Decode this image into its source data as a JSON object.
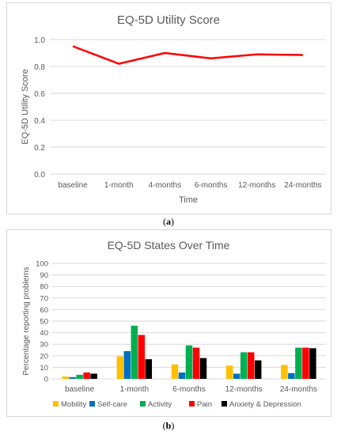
{
  "panels": {
    "a_label": "a",
    "b_label": "b"
  },
  "chart_data": [
    {
      "type": "line",
      "title": "EQ-5D Utility Score",
      "xlabel": "Time",
      "ylabel": "EQ-5D Utility Score",
      "categories": [
        "baseline",
        "1-month",
        "4-months",
        "6-months",
        "12-months",
        "24-months"
      ],
      "series": [
        {
          "values": [
            0.95,
            0.82,
            0.9,
            0.86,
            0.89,
            0.885
          ]
        }
      ],
      "ylim": [
        0,
        1.0
      ],
      "yticks": [
        "0.0",
        "0.2",
        "0.4",
        "0.6",
        "0.8",
        "1.0"
      ],
      "grid": true,
      "color": "#ff0000"
    },
    {
      "type": "bar",
      "title": "EQ-5D States Over Time",
      "xlabel": "",
      "ylabel": "Percentage reporting  problems",
      "categories": [
        "baseline",
        "1-month",
        "6-months",
        "12-months",
        "24-months"
      ],
      "series": [
        {
          "name": "Mobility",
          "color": "#ffc000",
          "values": [
            2,
            19.5,
            12.5,
            11.5,
            12
          ]
        },
        {
          "name": "Self-care",
          "color": "#0070c0",
          "values": [
            1.5,
            24,
            5.5,
            4.5,
            5
          ]
        },
        {
          "name": "Activity",
          "color": "#00b050",
          "values": [
            3.5,
            46,
            29,
            23,
            27
          ]
        },
        {
          "name": "Pain",
          "color": "#ff0000",
          "values": [
            5.5,
            38,
            27,
            23,
            27
          ]
        },
        {
          "name": "Anxiety & Depression",
          "color": "#000000",
          "values": [
            4.5,
            17,
            18,
            16,
            26.5
          ]
        }
      ],
      "ylim": [
        0,
        100
      ],
      "yticks": [
        "0",
        "10",
        "20",
        "30",
        "40",
        "50",
        "60",
        "70",
        "80",
        "90",
        "100"
      ],
      "grid": true,
      "legend": "bottom"
    }
  ]
}
